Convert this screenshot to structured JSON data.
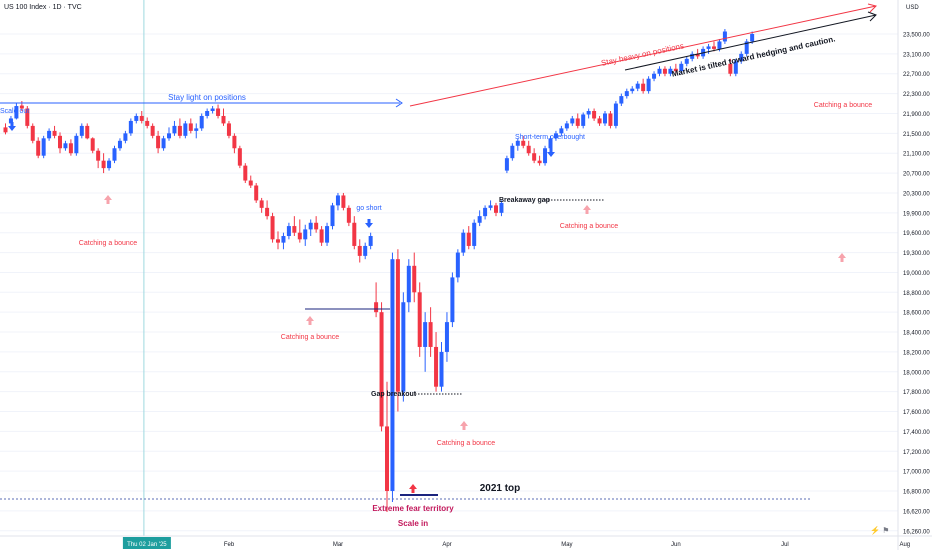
{
  "header": {
    "symbol": "US 100 Index · 1D · TVC",
    "currency": "USD"
  },
  "colors": {
    "up": "#2962ff",
    "down": "#f23645",
    "red_text": "#f23645",
    "blue_text": "#2962ff",
    "grid": "#f0f3fa",
    "axis_text": "#131722"
  },
  "chart_data": {
    "type": "candlestick",
    "y_ticks": [
      16260,
      16620,
      16800,
      17000,
      17200,
      17400,
      17600,
      17800,
      18000,
      18200,
      18400,
      18600,
      18800,
      19000,
      19300,
      19600,
      19900,
      20300,
      20700,
      21100,
      21500,
      21900,
      22300,
      22700,
      23100,
      23500
    ],
    "y_tick_labels": [
      "16,260.00",
      "16,620.00",
      "16,800.00",
      "17,000.00",
      "17,200.00",
      "17,400.00",
      "17,600.00",
      "17,800.00",
      "18,000.00",
      "18,200.00",
      "18,400.00",
      "18,600.00",
      "18,800.00",
      "19,000.00",
      "19,300.00",
      "19,600.00",
      "19,900.00",
      "20,300.00",
      "20,700.00",
      "21,100.00",
      "21,500.00",
      "21,900.00",
      "22,300.00",
      "22,700.00",
      "23,100.00",
      "23,500.00"
    ],
    "x_labels": [
      {
        "label": "Thu 02 Jan '25",
        "day": 12,
        "highlight": true
      },
      {
        "label": "Feb",
        "day": 30
      },
      {
        "label": "Mar",
        "day": 50
      },
      {
        "label": "Apr",
        "day": 70
      },
      {
        "label": "May",
        "day": 92
      },
      {
        "label": "Jun",
        "day": 112
      },
      {
        "label": "Jul",
        "day": 132
      },
      {
        "label": "Aug",
        "day": 154
      }
    ],
    "candles": [
      [
        21620,
        21700,
        21480,
        21520
      ],
      [
        21700,
        21850,
        21650,
        21800
      ],
      [
        21800,
        22120,
        21780,
        22050
      ],
      [
        22060,
        22150,
        21950,
        22000
      ],
      [
        22000,
        22050,
        21600,
        21650
      ],
      [
        21650,
        21700,
        21300,
        21350
      ],
      [
        21350,
        21420,
        21000,
        21050
      ],
      [
        21050,
        21450,
        21000,
        21400
      ],
      [
        21400,
        21600,
        21350,
        21550
      ],
      [
        21550,
        21650,
        21400,
        21450
      ],
      [
        21450,
        21520,
        21100,
        21200
      ],
      [
        21200,
        21350,
        21150,
        21300
      ],
      [
        21300,
        21380,
        21050,
        21100
      ],
      [
        21100,
        21500,
        21050,
        21450
      ],
      [
        21450,
        21700,
        21400,
        21650
      ],
      [
        21650,
        21700,
        21380,
        21400
      ],
      [
        21400,
        21420,
        21100,
        21150
      ],
      [
        21150,
        21200,
        20800,
        20950
      ],
      [
        20950,
        21100,
        20700,
        20800
      ],
      [
        20800,
        21000,
        20750,
        20950
      ],
      [
        20950,
        21250,
        20900,
        21200
      ],
      [
        21200,
        21400,
        21150,
        21350
      ],
      [
        21350,
        21550,
        21300,
        21500
      ],
      [
        21500,
        21800,
        21450,
        21750
      ],
      [
        21750,
        21900,
        21700,
        21850
      ],
      [
        21850,
        21950,
        21700,
        21750
      ],
      [
        21750,
        21820,
        21600,
        21650
      ],
      [
        21650,
        21700,
        21400,
        21450
      ],
      [
        21450,
        21550,
        21100,
        21200
      ],
      [
        21200,
        21450,
        21150,
        21400
      ],
      [
        21400,
        21620,
        21350,
        21500
      ],
      [
        21500,
        21750,
        21450,
        21650
      ],
      [
        21650,
        21800,
        21400,
        21450
      ],
      [
        21450,
        21750,
        21400,
        21700
      ],
      [
        21700,
        21800,
        21500,
        21550
      ],
      [
        21550,
        21700,
        21400,
        21600
      ],
      [
        21600,
        21900,
        21550,
        21850
      ],
      [
        21850,
        22000,
        21800,
        21950
      ],
      [
        21950,
        22050,
        21900,
        22000
      ],
      [
        22000,
        22080,
        21800,
        21850
      ],
      [
        21850,
        22000,
        21650,
        21700
      ],
      [
        21700,
        21750,
        21400,
        21450
      ],
      [
        21450,
        21500,
        21100,
        21200
      ],
      [
        21200,
        21250,
        20800,
        20850
      ],
      [
        20850,
        20900,
        20500,
        20550
      ],
      [
        20550,
        20650,
        20400,
        20450
      ],
      [
        20450,
        20500,
        20100,
        20150
      ],
      [
        20150,
        20200,
        19900,
        20000
      ],
      [
        20000,
        20150,
        19800,
        19850
      ],
      [
        19850,
        19900,
        19450,
        19500
      ],
      [
        19500,
        19620,
        19350,
        19450
      ],
      [
        19450,
        19600,
        19350,
        19550
      ],
      [
        19550,
        19750,
        19500,
        19700
      ],
      [
        19700,
        19850,
        19550,
        19600
      ],
      [
        19600,
        19800,
        19450,
        19500
      ],
      [
        19500,
        19720,
        19400,
        19650
      ],
      [
        19650,
        19800,
        19550,
        19750
      ],
      [
        19750,
        19850,
        19600,
        19650
      ],
      [
        19650,
        19700,
        19400,
        19450
      ],
      [
        19450,
        19750,
        19400,
        19700
      ],
      [
        19700,
        20100,
        19650,
        20050
      ],
      [
        20050,
        20300,
        19950,
        20250
      ],
      [
        20250,
        20300,
        19950,
        20000
      ],
      [
        20000,
        20050,
        19700,
        19750
      ],
      [
        19750,
        19850,
        19350,
        19400
      ],
      [
        19400,
        19500,
        19150,
        19250
      ],
      [
        19250,
        19450,
        19200,
        19400
      ],
      [
        19400,
        19600,
        19350,
        19550
      ],
      [
        18700,
        18900,
        18550,
        18600
      ],
      [
        18600,
        18700,
        17400,
        17450
      ],
      [
        17450,
        17900,
        16600,
        16800
      ],
      [
        16800,
        19300,
        16700,
        19200
      ],
      [
        19200,
        19350,
        17600,
        17800
      ],
      [
        17800,
        18800,
        17700,
        18700
      ],
      [
        18700,
        19200,
        18600,
        19100
      ],
      [
        19100,
        19300,
        18700,
        18800
      ],
      [
        18800,
        18900,
        18150,
        18250
      ],
      [
        18250,
        18600,
        18000,
        18500
      ],
      [
        18500,
        18650,
        18150,
        18250
      ],
      [
        18250,
        18400,
        17800,
        17850
      ],
      [
        17850,
        18300,
        17800,
        18200
      ],
      [
        18200,
        18600,
        18100,
        18500
      ],
      [
        18500,
        19000,
        18450,
        18950
      ],
      [
        18950,
        19350,
        18900,
        19300
      ],
      [
        19300,
        19650,
        19250,
        19600
      ],
      [
        19600,
        19700,
        19350,
        19400
      ],
      [
        19400,
        19800,
        19350,
        19750
      ],
      [
        19750,
        19950,
        19700,
        19850
      ],
      [
        19850,
        20050,
        19800,
        20000
      ],
      [
        20000,
        20150,
        19950,
        20050
      ],
      [
        20050,
        20100,
        19850,
        19900
      ],
      [
        19900,
        20150,
        19850,
        20100
      ],
      [
        20750,
        21050,
        20700,
        21000
      ],
      [
        21000,
        21300,
        20950,
        21250
      ],
      [
        21250,
        21400,
        21150,
        21350
      ],
      [
        21350,
        21450,
        21200,
        21250
      ],
      [
        21250,
        21350,
        21050,
        21100
      ],
      [
        21100,
        21200,
        20900,
        20950
      ],
      [
        20950,
        21050,
        20850,
        20900
      ],
      [
        20900,
        21250,
        20850,
        21200
      ],
      [
        21200,
        21450,
        21150,
        21400
      ],
      [
        21400,
        21550,
        21350,
        21500
      ],
      [
        21500,
        21650,
        21450,
        21600
      ],
      [
        21600,
        21750,
        21550,
        21700
      ],
      [
        21700,
        21850,
        21650,
        21800
      ],
      [
        21800,
        21900,
        21600,
        21650
      ],
      [
        21650,
        21920,
        21600,
        21880
      ],
      [
        21880,
        22000,
        21800,
        21950
      ],
      [
        21950,
        22000,
        21750,
        21800
      ],
      [
        21800,
        21850,
        21650,
        21700
      ],
      [
        21700,
        21950,
        21650,
        21900
      ],
      [
        21900,
        21950,
        21600,
        21650
      ],
      [
        21650,
        22150,
        21600,
        22100
      ],
      [
        22100,
        22300,
        22050,
        22250
      ],
      [
        22250,
        22400,
        22200,
        22350
      ],
      [
        22350,
        22450,
        22300,
        22400
      ],
      [
        22400,
        22550,
        22350,
        22500
      ],
      [
        22500,
        22600,
        22300,
        22350
      ],
      [
        22350,
        22650,
        22300,
        22600
      ],
      [
        22600,
        22750,
        22550,
        22700
      ],
      [
        22700,
        22850,
        22650,
        22800
      ],
      [
        22800,
        22850,
        22650,
        22700
      ],
      [
        22700,
        22850,
        22650,
        22800
      ],
      [
        22800,
        22900,
        22700,
        22750
      ],
      [
        22750,
        22950,
        22700,
        22900
      ],
      [
        22900,
        23050,
        22850,
        23000
      ],
      [
        23000,
        23150,
        22950,
        23100
      ],
      [
        23100,
        23200,
        23000,
        23050
      ],
      [
        23050,
        23250,
        23000,
        23200
      ],
      [
        23200,
        23300,
        23100,
        23250
      ],
      [
        23250,
        23350,
        23150,
        23200
      ],
      [
        23200,
        23400,
        23150,
        23350
      ],
      [
        23350,
        23600,
        23300,
        23550
      ],
      [
        22900,
        23000,
        22650,
        22700
      ],
      [
        22700,
        23000,
        22650,
        22950
      ],
      [
        22950,
        23150,
        22900,
        23100
      ],
      [
        23100,
        23400,
        23050,
        23350
      ],
      [
        23350,
        23550,
        23300,
        23500
      ]
    ]
  },
  "annotations": {
    "scale_out": "Scale out",
    "stay_light": "Stay light on positions",
    "stay_heavy": "Stay heavy on positions",
    "market_tilted": "Market is tilted toward hedging and caution.",
    "catching_bounce": "Catching a bounce",
    "go_short": "go short",
    "short_term_overbought": "Short-term overbought",
    "breakaway_gap": "Breakaway gap",
    "gap_breakout": "Gap breakout",
    "top_2021": "2021 top",
    "extreme_fear": "Extreme fear territory",
    "scale_in": "Scale in"
  }
}
